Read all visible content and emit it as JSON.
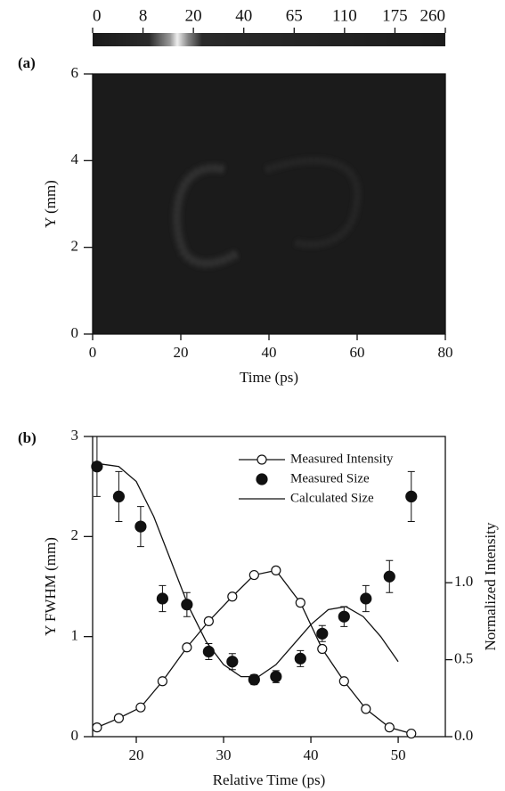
{
  "chart_data": [
    {
      "type": "heatmap",
      "panel_label": "(a)",
      "colorbar_ticks": [
        0,
        8,
        20,
        40,
        65,
        110,
        175,
        260
      ],
      "xlabel": "Time (ps)",
      "ylabel": "Y (mm)",
      "xlim": [
        0,
        80
      ],
      "xticks": [
        0,
        20,
        40,
        60,
        80
      ],
      "ylim": [
        0,
        6
      ],
      "yticks": [
        0,
        2,
        4,
        6
      ]
    },
    {
      "type": "line",
      "panel_label": "(b)",
      "xlabel": "Relative Time (ps)",
      "ylabel": "Y FWHM (mm)",
      "y2label": "Normalized Intensity",
      "xlim": [
        15,
        55.4
      ],
      "xticks": [
        20,
        30,
        40,
        50
      ],
      "ylim": [
        0,
        3
      ],
      "yticks": [
        0,
        1,
        2,
        3
      ],
      "y2lim": [
        0,
        1.95
      ],
      "y2ticks": [
        {
          "value": 0,
          "label": "0.0"
        },
        {
          "value": 0.5,
          "label": "0.5"
        },
        {
          "value": 1,
          "label": "1.0"
        }
      ],
      "legend": "upper-center",
      "series": [
        {
          "name": "Measured Intensity",
          "marker": "open-circle-line",
          "axis": "y2",
          "color": "#111",
          "x": [
            15.5,
            18,
            20.5,
            23,
            25.8,
            28.3,
            31,
            33.5,
            36,
            38.8,
            41.3,
            43.8,
            46.3,
            49,
            51.5
          ],
          "values": [
            0.06,
            0.12,
            0.19,
            0.36,
            0.58,
            0.75,
            0.91,
            1.05,
            1.08,
            0.87,
            0.57,
            0.36,
            0.18,
            0.06,
            0.02
          ]
        },
        {
          "name": "Measured Size",
          "marker": "filled-circle",
          "color": "#111",
          "x": [
            15.5,
            18,
            20.5,
            23,
            25.8,
            28.3,
            31,
            33.5,
            36,
            38.8,
            41.3,
            43.8,
            46.3,
            49,
            51.5
          ],
          "values": [
            2.7,
            2.4,
            2.1,
            1.38,
            1.32,
            0.85,
            0.75,
            0.57,
            0.6,
            0.78,
            1.03,
            1.2,
            1.38,
            1.6,
            2.4
          ],
          "errors": [
            0.3,
            0.25,
            0.2,
            0.13,
            0.12,
            0.08,
            0.08,
            0.05,
            0.06,
            0.08,
            0.08,
            0.1,
            0.13,
            0.16,
            0.25
          ]
        },
        {
          "name": "Calculated Size",
          "marker": "line",
          "color": "#111",
          "x": [
            15.5,
            18,
            20,
            22,
            24,
            26,
            28,
            30,
            32,
            34,
            36,
            38,
            40,
            42,
            44,
            46,
            48,
            50
          ],
          "values": [
            2.73,
            2.7,
            2.55,
            2.2,
            1.75,
            1.3,
            0.95,
            0.72,
            0.6,
            0.6,
            0.72,
            0.92,
            1.12,
            1.27,
            1.3,
            1.2,
            1.0,
            0.75
          ]
        }
      ]
    }
  ]
}
